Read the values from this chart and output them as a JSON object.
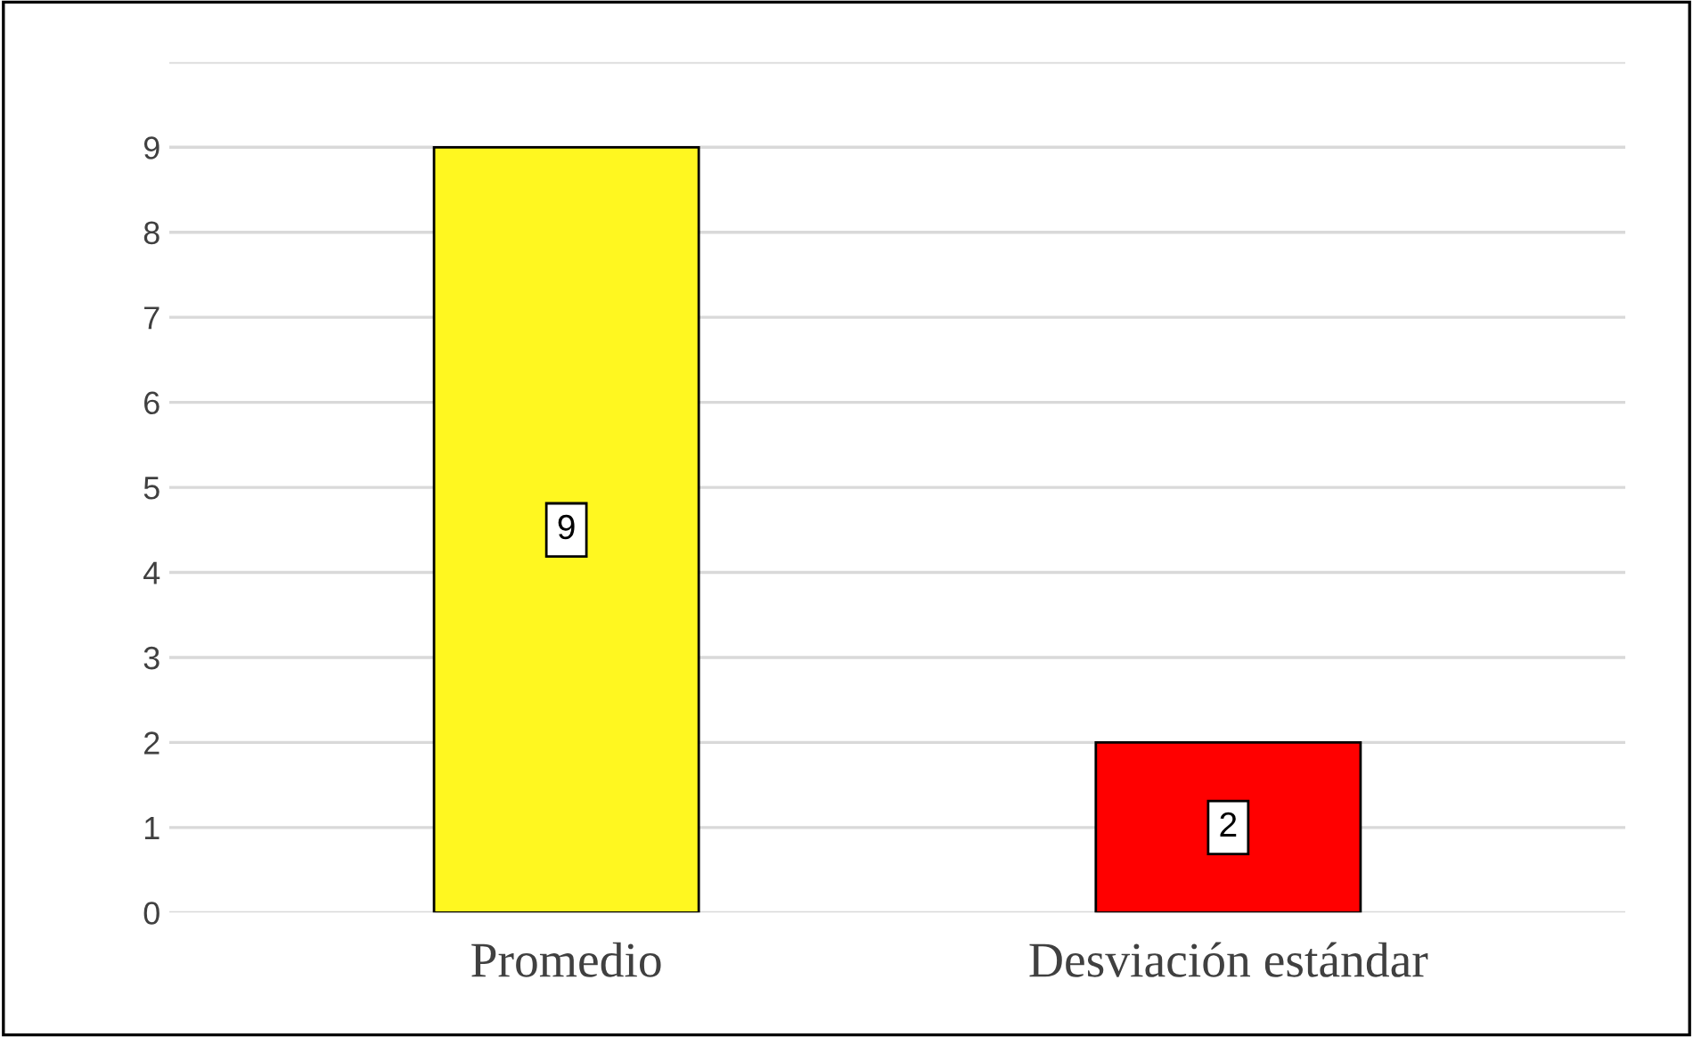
{
  "chart_data": {
    "type": "bar",
    "categories": [
      "Promedio",
      "Desviación estándar"
    ],
    "values": [
      9,
      2
    ],
    "colors": [
      "#fff720",
      "#ff0000"
    ],
    "ylim": [
      0,
      10
    ],
    "yticks": [
      0,
      1,
      2,
      3,
      4,
      5,
      6,
      7,
      8,
      9,
      {
        "value": 10,
        "label": null
      }
    ],
    "grid": "y",
    "data_labels": true
  }
}
